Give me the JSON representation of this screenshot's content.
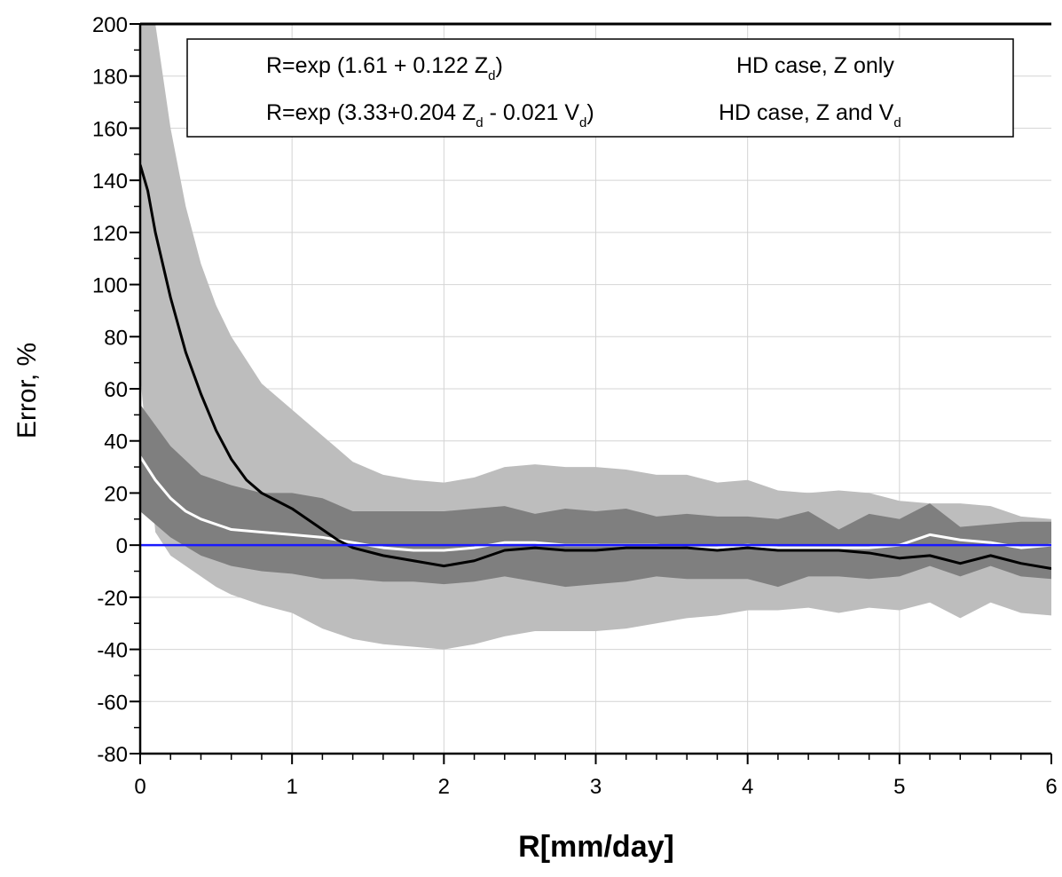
{
  "chart_data": {
    "type": "area",
    "xlabel": "R[mm/day]",
    "ylabel": "Error, %",
    "xlim": [
      0,
      6
    ],
    "ylim": [
      -80,
      200
    ],
    "x_ticks": [
      "0",
      "1",
      "2",
      "3",
      "4",
      "5",
      "6"
    ],
    "y_ticks": [
      "200",
      "180",
      "160",
      "140",
      "120",
      "100",
      "80",
      "60",
      "40",
      "20",
      "0",
      "-20",
      "-40",
      "-60",
      "-80"
    ],
    "grid": true,
    "legend": {
      "position": "top",
      "rows": [
        {
          "formula": "R=exp (1.61 + 0.122 Z",
          "formula_sub": "d",
          "formula_end": ")",
          "case": "HD case,   Z only",
          "case_sub": ""
        },
        {
          "formula": "R=exp (3.33+0.204 Z",
          "formula_sub": "d",
          "formula_mid": " - 0.021 V",
          "formula_sub2": "d",
          "formula_end": ")",
          "case": "HD case,   Z and V",
          "case_sub": "d"
        }
      ]
    },
    "reference_line": {
      "y": 0,
      "color": "#1a1aff"
    },
    "series": [
      {
        "role": "light-band",
        "color": "#bdbdbd",
        "x": [
          0,
          0.1,
          0.2,
          0.3,
          0.4,
          0.5,
          0.6,
          0.8,
          1.0,
          1.2,
          1.4,
          1.6,
          1.8,
          2.0,
          2.2,
          2.4,
          2.6,
          2.8,
          3.0,
          3.2,
          3.4,
          3.6,
          3.8,
          4.0,
          4.2,
          4.4,
          4.6,
          4.8,
          5.0,
          5.2,
          5.4,
          5.6,
          5.8,
          6.0
        ],
        "upper": [
          200,
          200,
          160,
          130,
          108,
          92,
          80,
          62,
          52,
          42,
          32,
          27,
          25,
          24,
          26,
          30,
          31,
          30,
          30,
          29,
          27,
          27,
          24,
          25,
          21,
          20,
          21,
          20,
          17,
          16,
          16,
          15,
          11,
          10
        ],
        "lower": [
          65,
          5,
          -4,
          -8,
          -12,
          -16,
          -19,
          -23,
          -26,
          -32,
          -36,
          -38,
          -39,
          -40,
          -38,
          -35,
          -33,
          -33,
          -33,
          -32,
          -30,
          -28,
          -27,
          -25,
          -25,
          -24,
          -26,
          -24,
          -25,
          -22,
          -28,
          -22,
          -26,
          -27
        ]
      },
      {
        "role": "dark-band",
        "color": "#7f7f7f",
        "x": [
          0,
          0.2,
          0.4,
          0.6,
          0.8,
          1.0,
          1.2,
          1.4,
          1.6,
          1.8,
          2.0,
          2.2,
          2.4,
          2.6,
          2.8,
          3.0,
          3.2,
          3.4,
          3.6,
          3.8,
          4.0,
          4.2,
          4.4,
          4.6,
          4.8,
          5.0,
          5.2,
          5.4,
          5.6,
          5.8,
          6.0
        ],
        "upper": [
          54,
          38,
          27,
          23,
          20,
          20,
          18,
          13,
          13,
          13,
          13,
          14,
          15,
          12,
          14,
          13,
          14,
          11,
          12,
          11,
          11,
          10,
          13,
          6,
          12,
          10,
          16,
          7,
          8,
          9,
          9
        ],
        "lower": [
          13,
          3,
          -4,
          -8,
          -10,
          -11,
          -13,
          -13,
          -14,
          -14,
          -15,
          -14,
          -12,
          -14,
          -16,
          -15,
          -14,
          -12,
          -13,
          -13,
          -13,
          -16,
          -12,
          -12,
          -13,
          -12,
          -8,
          -12,
          -8,
          -12,
          -13
        ]
      },
      {
        "role": "white-line",
        "color": "#ffffff",
        "x": [
          0,
          0.1,
          0.2,
          0.3,
          0.4,
          0.5,
          0.6,
          0.8,
          1.0,
          1.2,
          1.4,
          1.6,
          1.8,
          2.0,
          2.2,
          2.4,
          2.6,
          2.8,
          3.0,
          3.2,
          3.4,
          3.6,
          3.8,
          4.0,
          4.2,
          4.4,
          4.6,
          4.8,
          5.0,
          5.2,
          5.4,
          5.6,
          5.8,
          6.0
        ],
        "y": [
          34,
          25,
          18,
          13,
          10,
          8,
          6,
          5,
          4,
          3,
          1,
          -1,
          -2,
          -2,
          -1,
          1,
          1,
          0,
          0,
          0,
          0,
          -1,
          -1,
          0,
          -1,
          -1,
          -1,
          -1,
          0,
          4,
          2,
          1,
          -1,
          0
        ]
      },
      {
        "role": "black-line",
        "color": "#000000",
        "x": [
          0,
          0.05,
          0.1,
          0.2,
          0.3,
          0.4,
          0.5,
          0.6,
          0.7,
          0.8,
          0.9,
          1.0,
          1.1,
          1.2,
          1.3,
          1.4,
          1.6,
          1.8,
          2.0,
          2.2,
          2.4,
          2.6,
          2.8,
          3.0,
          3.2,
          3.4,
          3.6,
          3.8,
          4.0,
          4.2,
          4.4,
          4.6,
          4.8,
          5.0,
          5.2,
          5.4,
          5.6,
          5.8,
          6.0
        ],
        "y": [
          146,
          136,
          120,
          95,
          74,
          58,
          44,
          33,
          25,
          20,
          17,
          14,
          10,
          6,
          2,
          -1,
          -4,
          -6,
          -8,
          -6,
          -2,
          -1,
          -2,
          -2,
          -1,
          -1,
          -1,
          -2,
          -1,
          -2,
          -2,
          -2,
          -3,
          -5,
          -4,
          -7,
          -4,
          -7,
          -9
        ]
      },
      {
        "role": "zero-line",
        "color": "#1a1aff",
        "x": [
          0,
          6
        ],
        "y": [
          0,
          0
        ]
      }
    ]
  }
}
